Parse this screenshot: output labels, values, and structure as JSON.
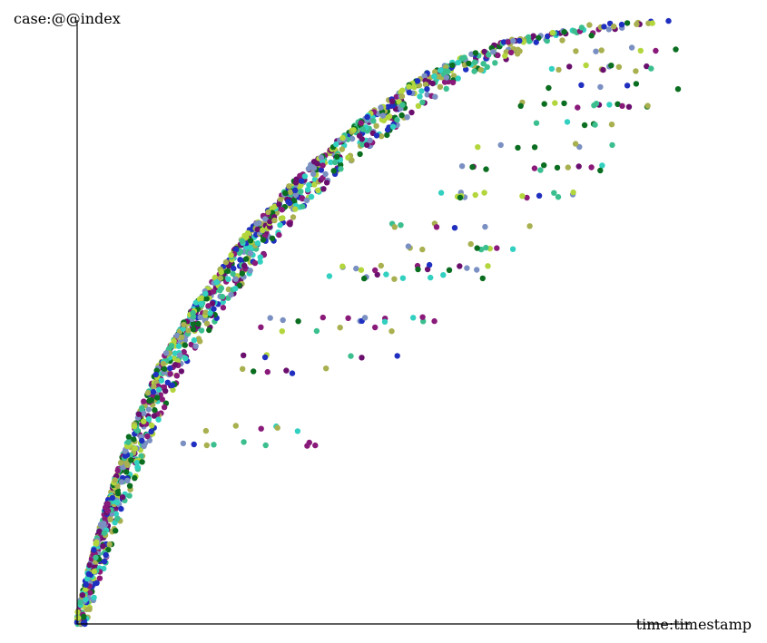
{
  "chart_data": {
    "type": "scatter",
    "title": "",
    "xlabel": "time:timestamp",
    "ylabel": "case:@@index",
    "xlim": [
      0,
      1
    ],
    "ylim": [
      0,
      1
    ],
    "grid": false,
    "legend": "none",
    "tick_labels": false,
    "x_scale": "linear",
    "y_scale": "linear",
    "encoding": "Normalized coordinates (x = fraction of time range, y = fraction of case-index range); the figure shows no tick labels, so units are unknown.",
    "palette": [
      "#6b0f6e",
      "#1f2fbf",
      "#b3d63c",
      "#0a6d1f",
      "#3bbf8f",
      "#7a8fc2",
      "#a8b04f",
      "#32d0c0",
      "#8a1a7a"
    ],
    "points_note": "Dense cloud of ~2000 event markers forming an upper concave envelope curve; events of each case are spread horizontally at the case's row.",
    "envelope": [
      {
        "x": 0.0,
        "y": 0.0
      },
      {
        "x": 0.02,
        "y": 0.08
      },
      {
        "x": 0.05,
        "y": 0.19
      },
      {
        "x": 0.09,
        "y": 0.31
      },
      {
        "x": 0.14,
        "y": 0.43
      },
      {
        "x": 0.2,
        "y": 0.53
      },
      {
        "x": 0.28,
        "y": 0.64
      },
      {
        "x": 0.37,
        "y": 0.74
      },
      {
        "x": 0.47,
        "y": 0.83
      },
      {
        "x": 0.58,
        "y": 0.91
      },
      {
        "x": 0.7,
        "y": 0.96
      },
      {
        "x": 0.85,
        "y": 0.99
      },
      {
        "x": 1.0,
        "y": 1.0
      }
    ],
    "outlier_rows": [
      {
        "y": 0.298,
        "x_start": 0.17,
        "x_end": 0.46
      },
      {
        "y": 0.324,
        "x_start": 0.18,
        "x_end": 0.4
      },
      {
        "y": 0.419,
        "x_start": 0.25,
        "x_end": 0.46
      },
      {
        "y": 0.443,
        "x_start": 0.26,
        "x_end": 0.53
      },
      {
        "y": 0.489,
        "x_start": 0.3,
        "x_end": 0.58
      },
      {
        "y": 0.505,
        "x_start": 0.31,
        "x_end": 0.6
      },
      {
        "y": 0.575,
        "x_start": 0.4,
        "x_end": 0.71
      },
      {
        "y": 0.59,
        "x_start": 0.4,
        "x_end": 0.7
      },
      {
        "y": 0.624,
        "x_start": 0.45,
        "x_end": 0.75
      },
      {
        "y": 0.66,
        "x_start": 0.52,
        "x_end": 0.77
      },
      {
        "y": 0.71,
        "x_start": 0.58,
        "x_end": 0.83
      },
      {
        "y": 0.755,
        "x_start": 0.62,
        "x_end": 0.88
      },
      {
        "y": 0.79,
        "x_start": 0.66,
        "x_end": 0.9
      },
      {
        "y": 0.83,
        "x_start": 0.7,
        "x_end": 0.92
      },
      {
        "y": 0.86,
        "x_start": 0.73,
        "x_end": 0.95
      },
      {
        "y": 0.89,
        "x_start": 0.76,
        "x_end": 1.0
      },
      {
        "y": 0.92,
        "x_start": 0.78,
        "x_end": 1.0
      },
      {
        "y": 0.95,
        "x_start": 0.8,
        "x_end": 1.0
      }
    ]
  }
}
